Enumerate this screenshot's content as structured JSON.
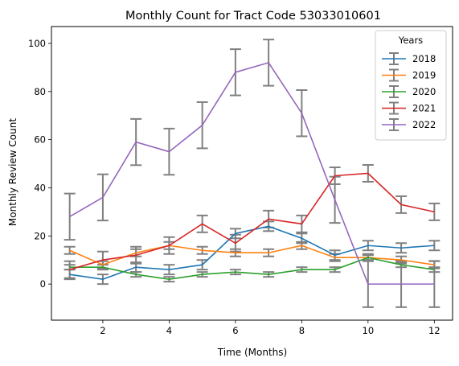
{
  "chart_data": {
    "type": "line",
    "title": "Monthly Count for Tract Code 53033010601",
    "xlabel": "Time (Months)",
    "ylabel": "Monthly Review Count",
    "xlim": [
      0.45,
      12.55
    ],
    "ylim": [
      -15,
      107
    ],
    "xticks": [
      2,
      4,
      6,
      8,
      10,
      12
    ],
    "yticks": [
      0,
      20,
      40,
      60,
      80,
      100
    ],
    "grid": false,
    "legend": {
      "title": "Years",
      "placement": "top-right"
    },
    "error_bar_color": "#808080",
    "x": [
      1,
      2,
      3,
      4,
      5,
      6,
      7,
      8,
      9,
      10,
      11,
      12
    ],
    "series": [
      {
        "name": "2018",
        "color": "#1f77b4",
        "values": [
          4,
          2,
          7,
          6,
          8,
          21,
          24,
          19,
          12,
          16,
          15,
          16
        ],
        "errors": [
          2,
          2,
          2,
          2,
          2,
          2,
          2,
          2,
          2,
          2,
          2,
          2
        ]
      },
      {
        "name": "2019",
        "color": "#ff7f0e",
        "values": [
          14,
          8,
          13,
          16,
          14,
          13,
          13,
          16,
          11,
          11,
          10,
          8
        ],
        "errors": [
          1.5,
          1.5,
          1.5,
          1.5,
          1.5,
          1.5,
          1.5,
          1.5,
          1.5,
          1.5,
          1.5,
          1.5
        ]
      },
      {
        "name": "2020",
        "color": "#2ca02c",
        "values": [
          7,
          7,
          4,
          2,
          4,
          5,
          4,
          6,
          6,
          11,
          8,
          6
        ],
        "errors": [
          1,
          1,
          1,
          1,
          1,
          1,
          1,
          1,
          1,
          1,
          1,
          1
        ]
      },
      {
        "name": "2021",
        "color": "#d62728",
        "values": [
          6,
          10,
          12,
          16,
          25,
          17,
          27,
          25,
          45,
          46,
          33,
          30
        ],
        "errors": [
          3.5,
          3.5,
          3.5,
          3.5,
          3.5,
          3.5,
          3.5,
          3.5,
          3.5,
          3.5,
          3.5,
          3.5
        ]
      },
      {
        "name": "2022",
        "color": "#9467bd",
        "values": [
          28,
          36,
          59,
          55,
          66,
          88,
          92,
          71,
          35,
          0,
          0,
          0
        ],
        "errors": [
          9.6,
          9.6,
          9.6,
          9.6,
          9.6,
          9.6,
          9.6,
          9.6,
          9.6,
          9.6,
          9.6,
          9.6
        ]
      }
    ]
  }
}
